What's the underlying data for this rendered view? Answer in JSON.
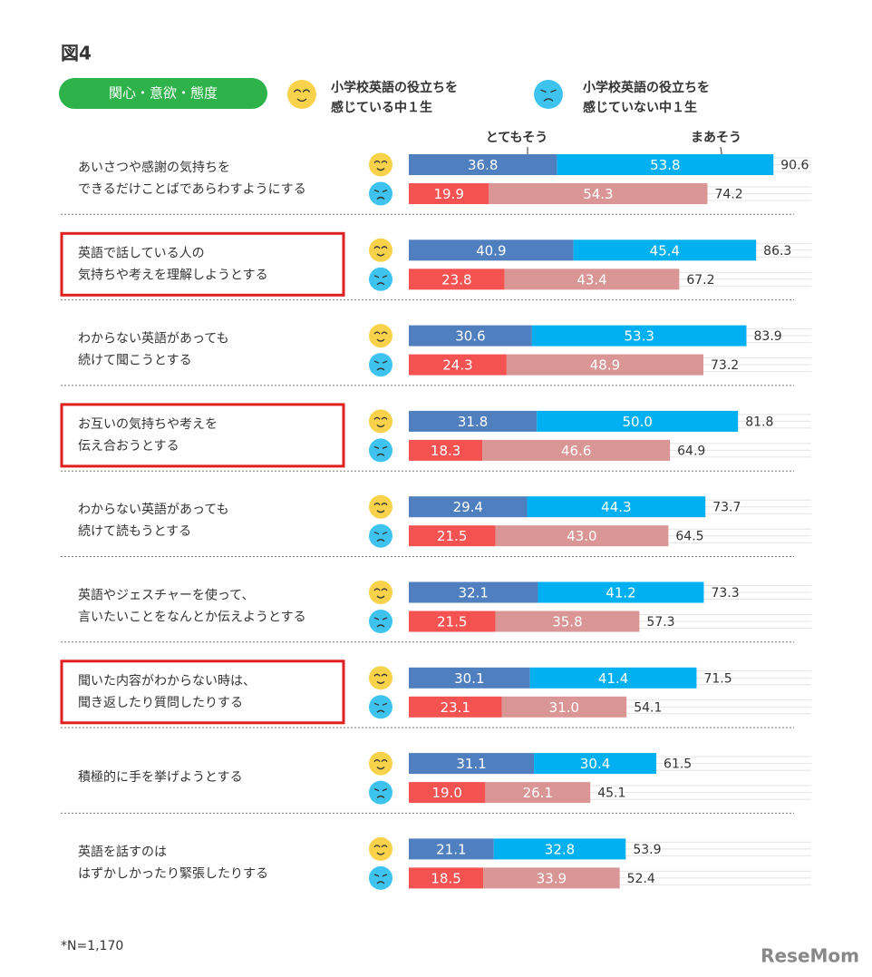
{
  "chart_data": {
    "type": "bar",
    "orientation": "horizontal",
    "stacked": true,
    "figure_label": "図4",
    "tag": "関心・意欲・態度",
    "segment_annotations": [
      "とてもそう",
      "まあそう"
    ],
    "categories": [
      [
        "あいさつや感謝の気持ちを",
        "できるだけことばであらわすようにする"
      ],
      [
        "英語で話している人の",
        "気持ちや考えを理解しようとする"
      ],
      [
        "わからない英語があっても",
        "続けて聞こうとする"
      ],
      [
        "お互いの気持ちや考えを",
        "伝え合おうとする"
      ],
      [
        "わからない英語があっても",
        "続けて読もうとする"
      ],
      [
        "英語やジェスチャーを使って、",
        "言いたいことをなんとか伝えようとする"
      ],
      [
        "聞いた内容がわからない時は、",
        "聞き返したり質問したりする"
      ],
      [
        "積極的に手を挙げようとする"
      ],
      [
        "英語を話すのは",
        "はずかしかったり緊張したりする"
      ]
    ],
    "highlighted": [
      false,
      true,
      false,
      true,
      false,
      false,
      true,
      false,
      false
    ],
    "groups": [
      {
        "name": [
          "小学校英語の役立ちを",
          "感じている中１生"
        ],
        "face": "smile",
        "series": [
          {
            "name": "とてもそう",
            "color": "#4f7fbe",
            "values": [
              36.8,
              40.9,
              30.6,
              31.8,
              29.4,
              32.1,
              30.1,
              31.1,
              21.1
            ]
          },
          {
            "name": "まあそう",
            "color": "#00b0f0",
            "values": [
              53.8,
              45.4,
              53.3,
              50.0,
              44.3,
              41.2,
              41.4,
              30.4,
              32.8
            ],
            "value_labels": [
              "53.8",
              "45.4",
              "53.3",
              "50.0",
              "44.3",
              "41.2",
              "41.4",
              "30.4",
              "32.8"
            ]
          }
        ],
        "totals": [
          90.6,
          86.3,
          83.9,
          81.8,
          73.7,
          73.3,
          71.5,
          61.5,
          53.9
        ]
      },
      {
        "name": [
          "小学校英語の役立ちを",
          "感じていない中１生"
        ],
        "face": "sad",
        "series": [
          {
            "name": "とてもそう",
            "color": "#f55352",
            "values": [
              19.9,
              23.8,
              24.3,
              18.3,
              21.5,
              21.5,
              23.1,
              19.0,
              18.5
            ],
            "value_labels": [
              "19.9",
              "23.8",
              "24.3",
              "18.3",
              "21.5",
              "21.5",
              "23.1",
              "19.0",
              "18.5"
            ]
          },
          {
            "name": "まあそう",
            "color": "#d99694",
            "values": [
              54.3,
              43.4,
              48.9,
              46.6,
              43.0,
              35.8,
              31.0,
              26.1,
              33.9
            ],
            "value_labels": [
              "54.3",
              "43.4",
              "48.9",
              "46.6",
              "43.0",
              "35.8",
              "31.0",
              "26.1",
              "33.9"
            ]
          }
        ],
        "totals": [
          74.2,
          67.2,
          73.2,
          64.9,
          64.5,
          57.3,
          54.1,
          45.1,
          52.4
        ]
      }
    ],
    "note": "*N=1,170",
    "watermark": "ReseMom"
  }
}
